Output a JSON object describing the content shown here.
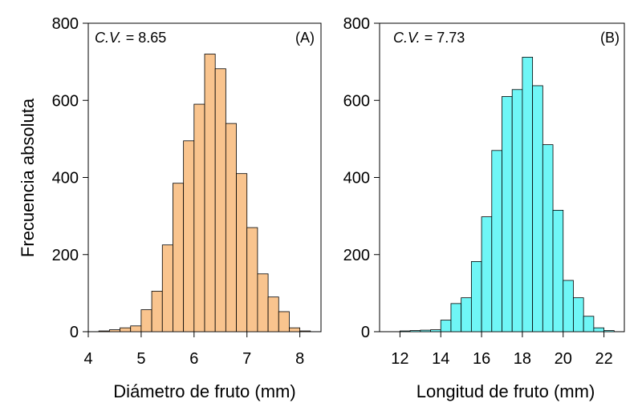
{
  "ylabel": "Frecuencia absoluta",
  "chart_data": [
    {
      "type": "bar",
      "panel": "(A)",
      "cv_label": "C.V.",
      "cv_value": "= 8.65",
      "xlabel": "Diámetro de fruto (mm)",
      "ylabel": "Frecuencia absoluta",
      "xlim": [
        4,
        8.4
      ],
      "ylim": [
        0,
        800
      ],
      "xticks": [
        "4",
        "5",
        "6",
        "7",
        "8"
      ],
      "yticks": [
        "0",
        "200",
        "400",
        "600",
        "800"
      ],
      "bin_width": 0.2,
      "bin_starts": [
        4.2,
        4.4,
        4.6,
        4.8,
        5.0,
        5.2,
        5.4,
        5.6,
        5.8,
        6.0,
        6.2,
        6.4,
        6.6,
        6.8,
        7.0,
        7.2,
        7.4,
        7.6,
        7.8,
        8.0
      ],
      "values": [
        2,
        5,
        10,
        15,
        57,
        105,
        225,
        385,
        495,
        590,
        720,
        682,
        540,
        410,
        270,
        150,
        90,
        52,
        10,
        2
      ],
      "color": "#F9C48E"
    },
    {
      "type": "bar",
      "panel": "(B)",
      "cv_label": "C.V.",
      "cv_value": "= 7.73",
      "xlabel": "Longitud de fruto (mm)",
      "ylabel": "",
      "xlim": [
        11,
        23
      ],
      "ylim": [
        0,
        800
      ],
      "xticks": [
        "12",
        "14",
        "16",
        "18",
        "20",
        "22"
      ],
      "yticks": [
        "0",
        "200",
        "400",
        "600",
        "800"
      ],
      "bin_width": 0.5,
      "bin_starts": [
        12.0,
        12.5,
        13.0,
        13.5,
        14.0,
        14.5,
        15.0,
        15.5,
        16.0,
        16.5,
        17.0,
        17.5,
        18.0,
        18.5,
        19.0,
        19.5,
        20.0,
        20.5,
        21.0,
        21.5,
        22.0
      ],
      "values": [
        2,
        3,
        4,
        5,
        30,
        73,
        88,
        182,
        298,
        470,
        610,
        628,
        712,
        638,
        485,
        315,
        133,
        88,
        40,
        10,
        3
      ],
      "color": "#6FF6F6"
    }
  ]
}
